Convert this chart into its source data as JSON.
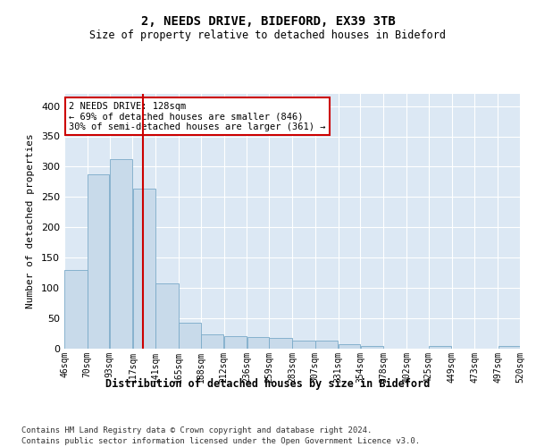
{
  "title1": "2, NEEDS DRIVE, BIDEFORD, EX39 3TB",
  "title2": "Size of property relative to detached houses in Bideford",
  "xlabel": "Distribution of detached houses by size in Bideford",
  "ylabel": "Number of detached properties",
  "footnote1": "Contains HM Land Registry data © Crown copyright and database right 2024.",
  "footnote2": "Contains public sector information licensed under the Open Government Licence v3.0.",
  "annotation_line1": "2 NEEDS DRIVE: 128sqm",
  "annotation_line2": "← 69% of detached houses are smaller (846)",
  "annotation_line3": "30% of semi-detached houses are larger (361) →",
  "property_size": 128,
  "bar_color": "#c8daea",
  "bar_edge_color": "#7aaac8",
  "redline_color": "#cc0000",
  "annotation_box_color": "#cc0000",
  "background_color": "#dce8f4",
  "bin_edges": [
    46,
    70,
    93,
    117,
    141,
    165,
    188,
    212,
    236,
    259,
    283,
    307,
    331,
    354,
    378,
    402,
    425,
    449,
    473,
    497,
    520
  ],
  "bar_heights": [
    130,
    287,
    313,
    264,
    108,
    43,
    23,
    20,
    19,
    17,
    14,
    13,
    7,
    5,
    0,
    0,
    5,
    0,
    0,
    5
  ],
  "ylim": [
    0,
    420
  ],
  "yticks": [
    0,
    50,
    100,
    150,
    200,
    250,
    300,
    350,
    400
  ]
}
